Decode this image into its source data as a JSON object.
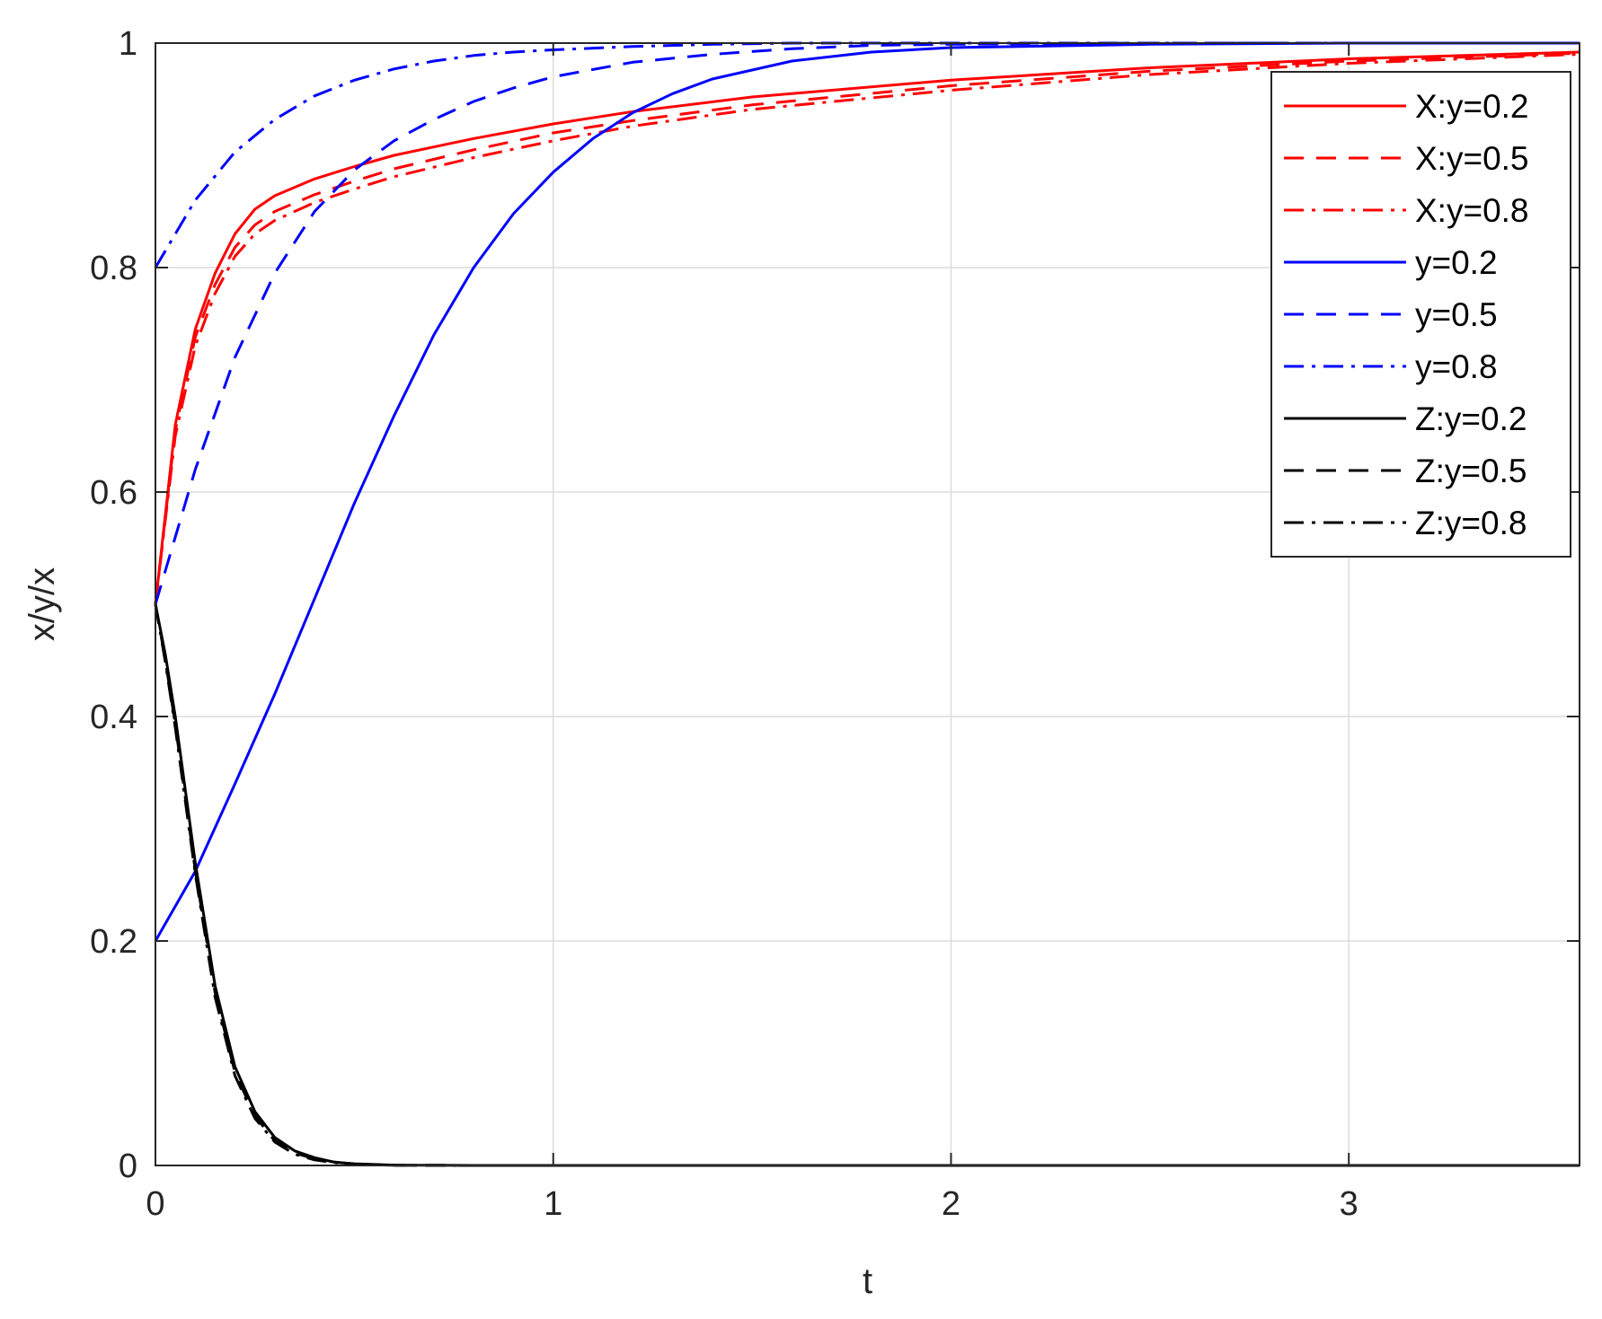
{
  "chart_data": {
    "type": "line",
    "title": "",
    "xlabel": "t",
    "ylabel": "x/y/x",
    "xlim": [
      0,
      3.58
    ],
    "ylim": [
      0,
      1
    ],
    "xticks": [
      0,
      1,
      2,
      3
    ],
    "yticks": [
      0,
      0.2,
      0.4,
      0.6,
      0.8,
      1
    ],
    "xtick_labels": [
      "0",
      "1",
      "2",
      "3"
    ],
    "ytick_labels": [
      "0",
      "0.2",
      "0.4",
      "0.6",
      "0.8",
      "1"
    ],
    "grid": true,
    "legend_position": "top-right",
    "series": [
      {
        "name": "X:y=0.2",
        "color": "#ff0000",
        "dash": "solid",
        "x": [
          0,
          0.05,
          0.1,
          0.15,
          0.2,
          0.25,
          0.3,
          0.4,
          0.5,
          0.6,
          0.8,
          1.0,
          1.2,
          1.5,
          2.0,
          2.5,
          3.0,
          3.58
        ],
        "y": [
          0.5,
          0.66,
          0.745,
          0.795,
          0.83,
          0.852,
          0.864,
          0.879,
          0.89,
          0.9,
          0.915,
          0.928,
          0.939,
          0.952,
          0.967,
          0.978,
          0.986,
          0.992
        ]
      },
      {
        "name": "X:y=0.5",
        "color": "#ff0000",
        "dash": "dashed",
        "x": [
          0,
          0.05,
          0.1,
          0.15,
          0.2,
          0.25,
          0.3,
          0.4,
          0.5,
          0.6,
          0.8,
          1.0,
          1.2,
          1.5,
          2.0,
          2.5,
          3.0,
          3.58
        ],
        "y": [
          0.5,
          0.655,
          0.738,
          0.785,
          0.818,
          0.838,
          0.85,
          0.865,
          0.877,
          0.888,
          0.905,
          0.92,
          0.931,
          0.945,
          0.962,
          0.975,
          0.984,
          0.991
        ]
      },
      {
        "name": "X:y=0.8",
        "color": "#ff0000",
        "dash": "dashdot",
        "x": [
          0,
          0.05,
          0.1,
          0.15,
          0.2,
          0.25,
          0.3,
          0.4,
          0.5,
          0.6,
          0.8,
          1.0,
          1.2,
          1.5,
          2.0,
          2.5,
          3.0,
          3.58
        ],
        "y": [
          0.5,
          0.65,
          0.73,
          0.777,
          0.81,
          0.83,
          0.842,
          0.858,
          0.87,
          0.881,
          0.898,
          0.913,
          0.926,
          0.941,
          0.958,
          0.972,
          0.982,
          0.99
        ]
      },
      {
        "name": "y=0.2",
        "color": "#0000ff",
        "dash": "solid",
        "x": [
          0,
          0.1,
          0.2,
          0.3,
          0.4,
          0.5,
          0.6,
          0.7,
          0.8,
          0.9,
          1.0,
          1.1,
          1.2,
          1.3,
          1.4,
          1.6,
          1.8,
          2.0,
          2.5,
          3.0,
          3.58
        ],
        "y": [
          0.2,
          0.262,
          0.34,
          0.42,
          0.505,
          0.59,
          0.668,
          0.74,
          0.8,
          0.848,
          0.885,
          0.915,
          0.938,
          0.955,
          0.968,
          0.984,
          0.992,
          0.996,
          0.999,
          1.0,
          1.0
        ]
      },
      {
        "name": "y=0.5",
        "color": "#0000ff",
        "dash": "dashed",
        "x": [
          0,
          0.1,
          0.2,
          0.3,
          0.4,
          0.5,
          0.6,
          0.7,
          0.8,
          0.9,
          1.0,
          1.2,
          1.4,
          1.6,
          1.8,
          2.0,
          2.5,
          3.0,
          3.58
        ],
        "y": [
          0.5,
          0.62,
          0.72,
          0.795,
          0.85,
          0.887,
          0.913,
          0.932,
          0.948,
          0.96,
          0.97,
          0.983,
          0.99,
          0.995,
          0.998,
          0.999,
          1.0,
          1.0,
          1.0
        ]
      },
      {
        "name": "y=0.8",
        "color": "#0000ff",
        "dash": "dashdot",
        "x": [
          0,
          0.1,
          0.2,
          0.3,
          0.4,
          0.5,
          0.6,
          0.7,
          0.8,
          0.9,
          1.0,
          1.2,
          1.4,
          1.6,
          2.0,
          2.5,
          3.0,
          3.58
        ],
        "y": [
          0.8,
          0.86,
          0.903,
          0.932,
          0.953,
          0.967,
          0.977,
          0.984,
          0.989,
          0.992,
          0.994,
          0.997,
          0.999,
          1.0,
          1.0,
          1.0,
          1.0,
          1.0
        ]
      },
      {
        "name": "Z:y=0.2",
        "color": "#000000",
        "dash": "solid",
        "x": [
          0,
          0.025,
          0.05,
          0.075,
          0.1,
          0.15,
          0.2,
          0.25,
          0.3,
          0.35,
          0.4,
          0.45,
          0.5,
          0.6,
          0.8,
          1.0,
          2.0,
          3.0,
          3.58
        ],
        "y": [
          0.5,
          0.455,
          0.4,
          0.335,
          0.27,
          0.16,
          0.088,
          0.048,
          0.025,
          0.013,
          0.007,
          0.003,
          0.0015,
          0.0003,
          0.0,
          0.0,
          0.0,
          0.0,
          0.0
        ]
      },
      {
        "name": "Z:y=0.5",
        "color": "#000000",
        "dash": "dashed",
        "x": [
          0,
          0.025,
          0.05,
          0.075,
          0.1,
          0.15,
          0.2,
          0.25,
          0.3,
          0.35,
          0.4,
          0.45,
          0.5,
          0.6,
          0.8,
          1.0,
          2.0,
          3.0,
          3.58
        ],
        "y": [
          0.5,
          0.45,
          0.393,
          0.328,
          0.263,
          0.154,
          0.083,
          0.044,
          0.022,
          0.011,
          0.006,
          0.003,
          0.0012,
          0.0002,
          0.0,
          0.0,
          0.0,
          0.0,
          0.0
        ]
      },
      {
        "name": "Z:y=0.8",
        "color": "#000000",
        "dash": "dashdot",
        "x": [
          0,
          0.025,
          0.05,
          0.075,
          0.1,
          0.15,
          0.2,
          0.25,
          0.3,
          0.35,
          0.4,
          0.45,
          0.5,
          0.6,
          0.8,
          1.0,
          2.0,
          3.0,
          3.58
        ],
        "y": [
          0.5,
          0.448,
          0.39,
          0.325,
          0.26,
          0.15,
          0.08,
          0.042,
          0.021,
          0.01,
          0.005,
          0.0025,
          0.001,
          0.0002,
          0.0,
          0.0,
          0.0,
          0.0,
          0.0
        ]
      }
    ]
  }
}
